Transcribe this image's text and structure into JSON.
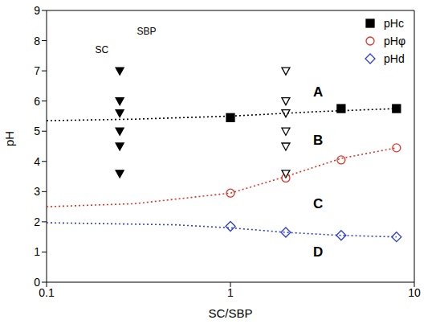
{
  "chart_data": {
    "type": "scatter",
    "x_label": "SC/SBP",
    "y_label": "pH",
    "log": "x",
    "legend": "top-right",
    "xlim": [
      0.1,
      10
    ],
    "xticks": [
      0.1,
      1,
      10
    ],
    "ylim": [
      0,
      9
    ],
    "yticks": [
      0,
      1,
      2,
      3,
      4,
      5,
      6,
      7,
      8,
      9
    ],
    "series": [
      {
        "name": "pHc",
        "type": "scatter",
        "color": "#000000",
        "marker": "square",
        "x": [
          1,
          4,
          8
        ],
        "values": [
          5.45,
          5.75,
          5.75
        ]
      },
      {
        "name": "pHφ",
        "type": "scatter",
        "color": "#e03327",
        "marker": "open-circle",
        "x": [
          1,
          2,
          4,
          8
        ],
        "values": [
          2.95,
          3.45,
          4.05,
          4.45
        ]
      },
      {
        "name": "pHd",
        "type": "scatter",
        "color": "#2e3fd0",
        "marker": "open-diamond",
        "x": [
          1,
          2,
          4,
          8
        ],
        "values": [
          1.85,
          1.65,
          1.55,
          1.5
        ]
      },
      {
        "type": "scatter",
        "color": "#000000",
        "marker": "triangle-down",
        "x": [
          0.25,
          0.25,
          0.25,
          0.25,
          0.25,
          0.25
        ],
        "values": [
          7.0,
          6.0,
          5.6,
          5.0,
          4.5,
          3.6
        ]
      },
      {
        "type": "scatter",
        "color": "#000000",
        "marker": "open-triangle-down",
        "x": [
          2,
          2,
          2,
          2,
          2,
          2
        ],
        "values": [
          7.0,
          6.0,
          5.6,
          5.0,
          4.5,
          3.6
        ]
      },
      {
        "type": "line",
        "color": "#000000",
        "marker": "none",
        "line_style": "dotted",
        "x": [
          0.1,
          0.3,
          1,
          3,
          8
        ],
        "values": [
          5.35,
          5.4,
          5.5,
          5.65,
          5.75
        ]
      },
      {
        "type": "line",
        "color": "#e03327",
        "marker": "none",
        "line_style": "dotted",
        "x": [
          0.1,
          0.3,
          1,
          2,
          4,
          8
        ],
        "values": [
          2.5,
          2.6,
          2.95,
          3.5,
          4.1,
          4.45
        ]
      },
      {
        "type": "line",
        "color": "#2e3fd0",
        "marker": "none",
        "line_style": "dotted",
        "x": [
          0.1,
          0.5,
          1,
          2,
          4,
          8
        ],
        "values": [
          1.97,
          1.9,
          1.8,
          1.65,
          1.55,
          1.5
        ]
      }
    ],
    "annotations": [
      {
        "text": "SBP",
        "x": 0.35,
        "y": 8.3
      },
      {
        "text": "SC",
        "x": 0.2,
        "y": 7.7
      },
      {
        "text": "A",
        "x": 3.0,
        "y": 6.3
      },
      {
        "text": "B",
        "x": 3.0,
        "y": 4.7
      },
      {
        "text": "C",
        "x": 3.0,
        "y": 2.6
      },
      {
        "text": "D",
        "x": 3.0,
        "y": 1.0
      }
    ]
  }
}
